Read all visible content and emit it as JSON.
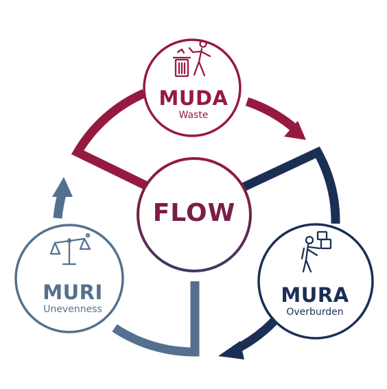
{
  "colors": {
    "muda": "#961a40",
    "mura": "#1b2f55",
    "muri": "#55708f"
  },
  "center": {
    "label": "FLOW"
  },
  "nodes": [
    {
      "key": "muda",
      "title": "MUDA",
      "subtitle": "Waste",
      "icon": "person-throwing-trash-icon"
    },
    {
      "key": "mura",
      "title": "MURA",
      "subtitle": "Overburden",
      "icon": "person-carrying-boxes-icon"
    },
    {
      "key": "muri",
      "title": "MURI",
      "subtitle": "Unevenness",
      "icon": "balance-scale-icon"
    }
  ]
}
